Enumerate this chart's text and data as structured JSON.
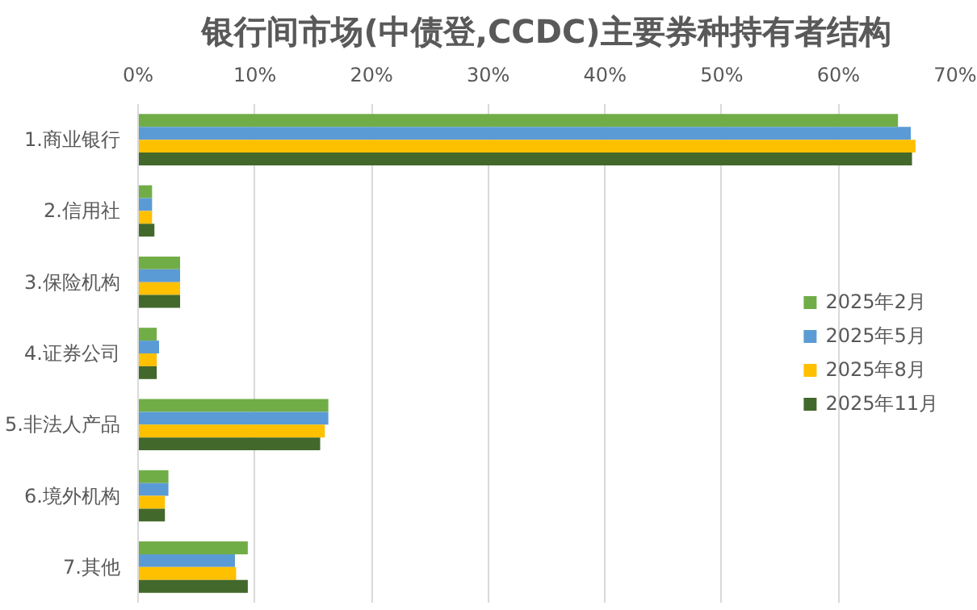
{
  "chart_data": {
    "type": "bar",
    "orientation": "horizontal",
    "title": "银行间市场(中债登,CCDC)主要券种持有者结构",
    "categories": [
      "1.商业银行",
      "2.信用社",
      "3.保险机构",
      "4.证券公司",
      "5.非法人产品",
      "6.境外机构",
      "7.其他"
    ],
    "series": [
      {
        "name": "2025年2月",
        "color": "#70ad47",
        "values": [
          65.1,
          1.2,
          3.6,
          1.6,
          16.3,
          2.6,
          9.4
        ]
      },
      {
        "name": "2025年5月",
        "color": "#5b9bd5",
        "values": [
          66.2,
          1.2,
          3.6,
          1.8,
          16.3,
          2.6,
          8.3
        ]
      },
      {
        "name": "2025年8月",
        "color": "#ffc000",
        "values": [
          66.6,
          1.2,
          3.6,
          1.6,
          16.0,
          2.3,
          8.4
        ]
      },
      {
        "name": "2025年11月",
        "color": "#43682b",
        "values": [
          66.3,
          1.4,
          3.6,
          1.6,
          15.6,
          2.3,
          9.4
        ]
      }
    ],
    "xlim": [
      0,
      70
    ],
    "xticks": [
      {
        "value": 0,
        "label": "0%"
      },
      {
        "value": 10,
        "label": "10%"
      },
      {
        "value": 20,
        "label": "20%"
      },
      {
        "value": 30,
        "label": "30%"
      },
      {
        "value": 40,
        "label": "40%"
      },
      {
        "value": 50,
        "label": "50%"
      },
      {
        "value": 60,
        "label": "60%"
      },
      {
        "value": 70,
        "label": "70%"
      }
    ],
    "grid": "x",
    "legend": "right"
  }
}
